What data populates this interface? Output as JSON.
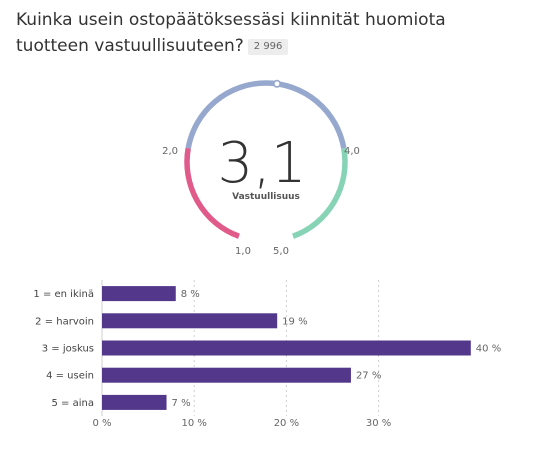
{
  "question": {
    "text": "Kuinka usein ostopäätöksessäsi kiinnität huomiota tuotteen vastuullisuuteen?",
    "responses": "2 996"
  },
  "colors": {
    "gauge_low": "#e05a8a",
    "gauge_mid": "#97a8ce",
    "gauge_high": "#86d3b6",
    "bar": "#53378a",
    "text": "#333333"
  },
  "chart_data": [
    {
      "type": "gauge",
      "value": 3.1,
      "value_label": "3,1",
      "label": "Vastuullisuus",
      "min": 1.0,
      "max": 5.0,
      "tick_labels": [
        "1,0",
        "2,0",
        "4,0",
        "5,0"
      ]
    },
    {
      "type": "bar",
      "orientation": "horizontal",
      "categories": [
        "1 = en ikinä",
        "2 = harvoin",
        "3 = joskus",
        "4 = usein",
        "5 = aina"
      ],
      "values": [
        8,
        19,
        40,
        27,
        7
      ],
      "value_labels": [
        "8 %",
        "19 %",
        "40 %",
        "27 %",
        "7 %"
      ],
      "xlim": [
        0,
        40
      ],
      "x_ticks": [
        0,
        10,
        20,
        30
      ],
      "x_tick_labels": [
        "0 %",
        "10 %",
        "20 %",
        "30 %"
      ],
      "grid": true
    }
  ]
}
